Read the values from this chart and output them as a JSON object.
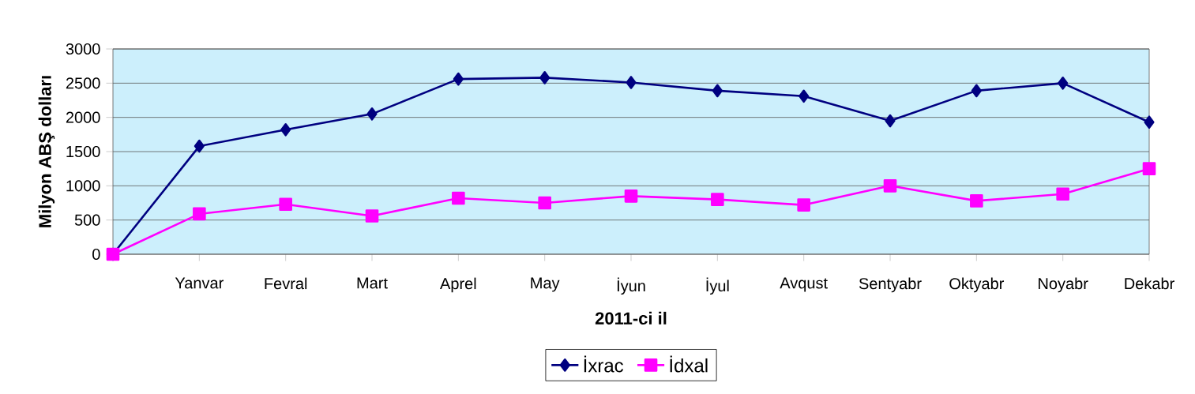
{
  "chart_data": {
    "type": "line",
    "xlabel": "2011-ci il",
    "ylabel": "Milyon ABŞ dolları",
    "categories": [
      null,
      "Yanvar",
      "Fevral",
      "Mart",
      "Aprel",
      "May",
      "İyun",
      "İyul",
      "Avqust",
      "Sentyabr",
      "Oktyabr",
      "Noyabr",
      "Dekabr"
    ],
    "series": [
      {
        "name": "İxrac",
        "color": "#000080",
        "marker": "diamond",
        "values": [
          0,
          1580,
          1820,
          2050,
          2560,
          2580,
          2510,
          2390,
          2310,
          1950,
          2390,
          2500,
          1930
        ]
      },
      {
        "name": "İdxal",
        "color": "#ff00ff",
        "marker": "square",
        "values": [
          0,
          590,
          730,
          560,
          820,
          750,
          850,
          800,
          720,
          1000,
          780,
          880,
          1250
        ]
      }
    ],
    "ylim": [
      0,
      3000
    ],
    "yticks": [
      0,
      500,
      1000,
      1500,
      2000,
      2500,
      3000
    ],
    "grid": "y",
    "legend": "bottom",
    "line_style": "solid"
  }
}
